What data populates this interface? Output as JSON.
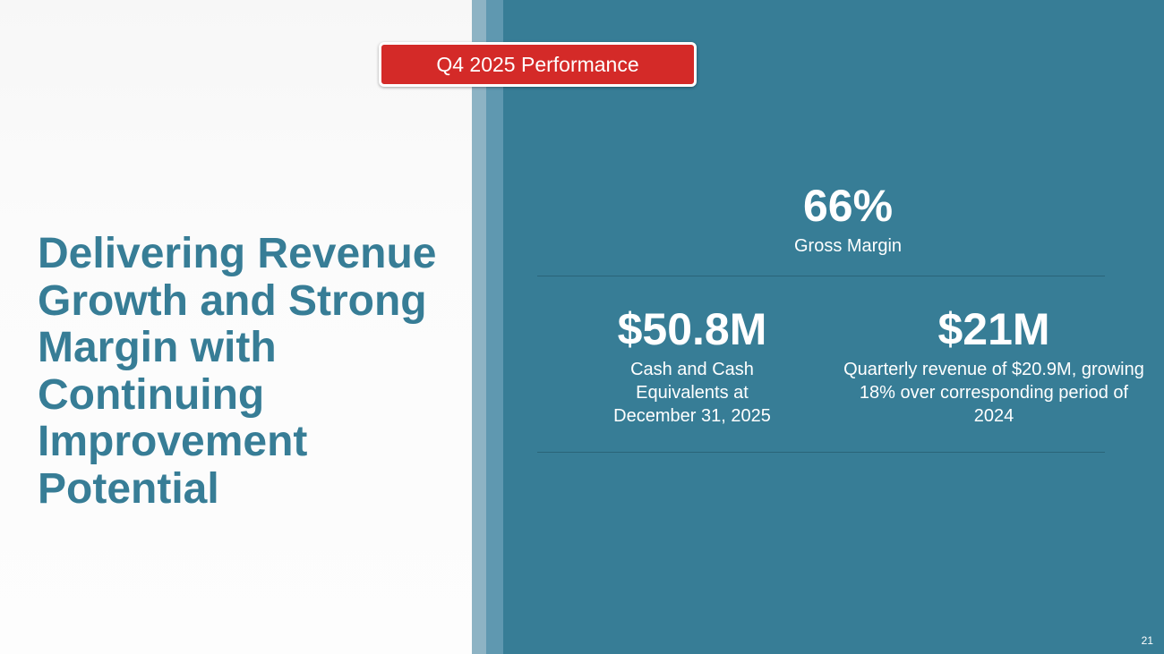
{
  "badge": {
    "label": "Q4 2025 Performance"
  },
  "headline": {
    "text": "Delivering Revenue Growth and Strong Margin with Continuing Improvement Potential"
  },
  "stats": {
    "gross_margin": {
      "value": "66%",
      "label": "Gross Margin"
    },
    "cash": {
      "value": "$50.8M",
      "label": "Cash and Cash Equivalents at December 31, 2025"
    },
    "revenue": {
      "value": "$21M",
      "label": "Quarterly revenue of $20.9M, growing 18% over corresponding period of 2024"
    }
  },
  "page_number": "21",
  "colors": {
    "accent_teal": "#377d96",
    "badge_red": "#d42a28",
    "text_white": "#ffffff"
  }
}
